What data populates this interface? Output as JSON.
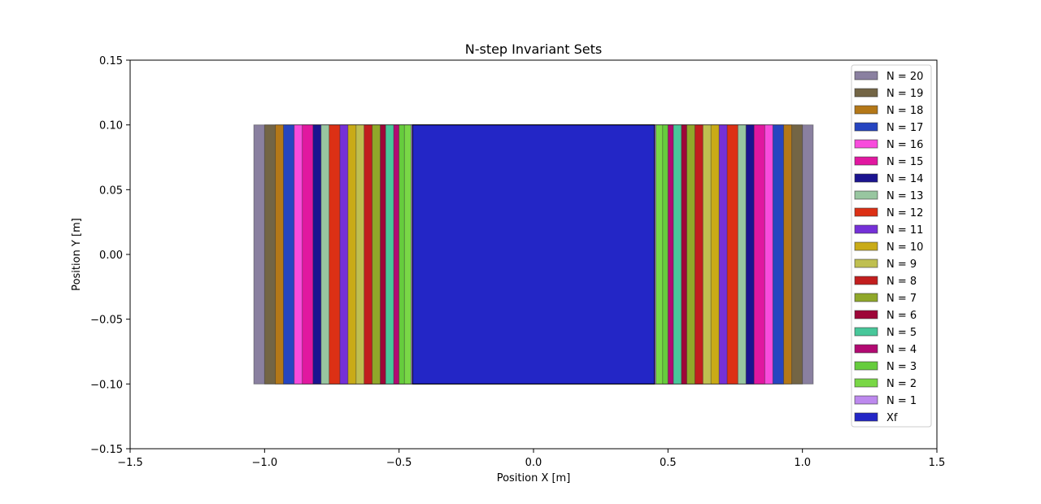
{
  "chart_data": {
    "type": "area",
    "title": "N-step Invariant Sets",
    "xlabel": "Position X [m]",
    "ylabel": "Position Y [m]",
    "xlim": [
      -1.5,
      1.5
    ],
    "ylim": [
      -0.15,
      0.15
    ],
    "xticks": [
      -1.5,
      -1.0,
      -0.5,
      0.0,
      0.5,
      1.0,
      1.5
    ],
    "xtick_labels": [
      "−1.5",
      "−1.0",
      "−0.5",
      "0.0",
      "0.5",
      "1.0",
      "1.5"
    ],
    "yticks": [
      -0.15,
      -0.1,
      -0.05,
      0.0,
      0.05,
      0.1,
      0.15
    ],
    "ytick_labels": [
      "−0.15",
      "−0.10",
      "−0.05",
      "0.00",
      "0.05",
      "0.10",
      "0.15"
    ],
    "grid": false,
    "legend_position": "top-right",
    "y_range": [
      -0.1,
      0.1
    ],
    "series": [
      {
        "name": "N = 20",
        "x_half_width": 1.04,
        "color": "#8a80a0"
      },
      {
        "name": "N = 19",
        "x_half_width": 1.0,
        "color": "#736545"
      },
      {
        "name": "N = 18",
        "x_half_width": 0.96,
        "color": "#b47818"
      },
      {
        "name": "N = 17",
        "x_half_width": 0.93,
        "color": "#2645c0"
      },
      {
        "name": "N = 16",
        "x_half_width": 0.89,
        "color": "#f84bdc"
      },
      {
        "name": "N = 15",
        "x_half_width": 0.86,
        "color": "#e117a0"
      },
      {
        "name": "N = 14",
        "x_half_width": 0.82,
        "color": "#1b1490"
      },
      {
        "name": "N = 13",
        "x_half_width": 0.79,
        "color": "#98c6a0"
      },
      {
        "name": "N = 12",
        "x_half_width": 0.76,
        "color": "#dc3015"
      },
      {
        "name": "N = 11",
        "x_half_width": 0.72,
        "color": "#7530d8"
      },
      {
        "name": "N = 10",
        "x_half_width": 0.69,
        "color": "#c9ab17"
      },
      {
        "name": "N = 9",
        "x_half_width": 0.66,
        "color": "#bfbf50"
      },
      {
        "name": "N = 8",
        "x_half_width": 0.63,
        "color": "#c21e1e"
      },
      {
        "name": "N = 7",
        "x_half_width": 0.6,
        "color": "#90a82a"
      },
      {
        "name": "N = 6",
        "x_half_width": 0.57,
        "color": "#9e0638"
      },
      {
        "name": "N = 5",
        "x_half_width": 0.55,
        "color": "#48c79a"
      },
      {
        "name": "N = 4",
        "x_half_width": 0.52,
        "color": "#b20a72"
      },
      {
        "name": "N = 3",
        "x_half_width": 0.5,
        "color": "#66cc3d"
      },
      {
        "name": "N = 2",
        "x_half_width": 0.48,
        "color": "#79d746"
      },
      {
        "name": "N = 1",
        "x_half_width": 0.455,
        "color": "#bd89ee"
      },
      {
        "name": "Xf",
        "x_half_width": 0.45,
        "color": "#2326c6"
      }
    ]
  }
}
